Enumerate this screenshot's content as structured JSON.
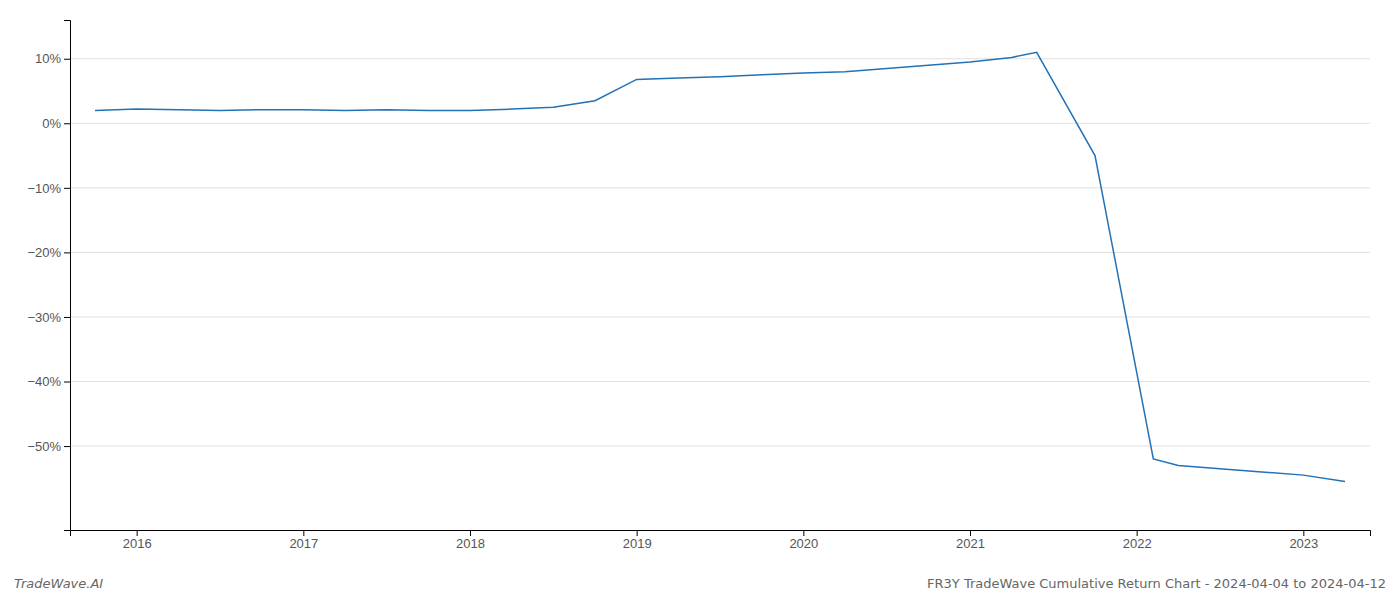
{
  "chart_data": {
    "type": "line",
    "x": [
      2015.75,
      2016.0,
      2016.25,
      2016.5,
      2016.75,
      2017.0,
      2017.25,
      2017.5,
      2017.75,
      2018.0,
      2018.25,
      2018.5,
      2018.75,
      2019.0,
      2019.25,
      2019.5,
      2019.75,
      2020.0,
      2020.25,
      2020.5,
      2020.75,
      2021.0,
      2021.25,
      2021.4,
      2021.75,
      2022.1,
      2022.25,
      2022.5,
      2022.75,
      2023.0,
      2023.25
    ],
    "values": [
      2.0,
      2.2,
      2.1,
      2.0,
      2.1,
      2.1,
      2.0,
      2.1,
      2.0,
      2.0,
      2.2,
      2.5,
      3.5,
      6.8,
      7.0,
      7.2,
      7.5,
      7.8,
      8.0,
      8.5,
      9.0,
      9.5,
      10.2,
      11.0,
      -5.0,
      -52.0,
      -53.0,
      -53.5,
      -54.0,
      -54.5,
      -55.5
    ],
    "color": "#2272b5",
    "xlim": [
      2015.6,
      2023.4
    ],
    "ylim": [
      -63,
      16
    ],
    "xticks": [
      2016,
      2017,
      2018,
      2019,
      2020,
      2021,
      2022,
      2023
    ],
    "yticks": [
      {
        "value": 10,
        "label": "10%"
      },
      {
        "value": 0,
        "label": "0%"
      },
      {
        "value": -10,
        "label": "−10%"
      },
      {
        "value": -20,
        "label": "−20%"
      },
      {
        "value": -30,
        "label": "−30%"
      },
      {
        "value": -40,
        "label": "−40%"
      },
      {
        "value": -50,
        "label": "−50%"
      }
    ],
    "grid": "y",
    "annotations": [
      "TradeWave.AI",
      "FR3Y TradeWave Cumulative Return Chart - 2024-04-04 to 2024-04-12"
    ]
  }
}
